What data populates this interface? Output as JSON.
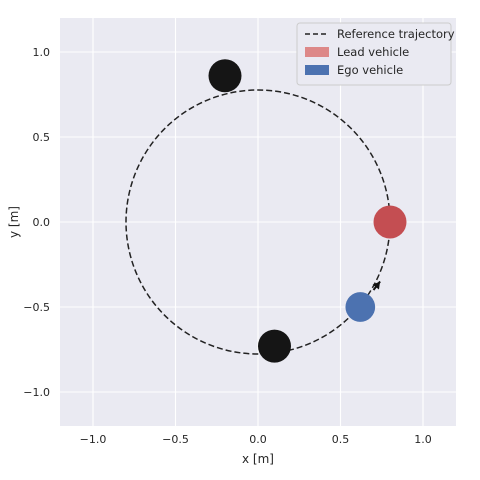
{
  "chart_data": {
    "type": "scatter",
    "title": "",
    "xlabel": "x [m]",
    "ylabel": "y [m]",
    "xlim": [
      -1.2,
      1.2
    ],
    "ylim": [
      -1.2,
      1.2
    ],
    "xticks": [
      -1.0,
      -0.5,
      0.0,
      0.5,
      1.0
    ],
    "xtick_labels": [
      "−1.0",
      "−0.5",
      "0.0",
      "0.5",
      "1.0"
    ],
    "yticks": [
      -1.0,
      -0.5,
      0.0,
      0.5,
      1.0
    ],
    "ytick_labels": [
      "−1.0",
      "−0.5",
      "0.0",
      "0.5",
      "1.0"
    ],
    "grid": true,
    "legend_position": "top-right",
    "legend": [
      {
        "label": "Reference trajectory",
        "kind": "dashed-line",
        "color": "#222222"
      },
      {
        "label": "Lead vehicle",
        "kind": "patch",
        "color": "#dd8888"
      },
      {
        "label": "Ego vehicle",
        "kind": "patch",
        "color": "#4c72b0"
      }
    ],
    "reference_trajectory": {
      "center": [
        0.0,
        0.0
      ],
      "radius": 0.8
    },
    "obstacles": [
      {
        "x": -0.2,
        "y": 0.86,
        "r": 0.1,
        "color": "#151515"
      },
      {
        "x": 0.1,
        "y": -0.73,
        "r": 0.1,
        "color": "#151515"
      }
    ],
    "lead_vehicle": {
      "x": 0.8,
      "y": 0.0,
      "r": 0.1,
      "color": "#c44e52"
    },
    "ego_vehicle": {
      "x": 0.62,
      "y": -0.5,
      "r": 0.09,
      "color": "#4c72b0"
    },
    "ego_heading_arrow": {
      "from": [
        0.7,
        -0.4
      ],
      "to": [
        0.74,
        -0.35
      ],
      "color": "#111111"
    },
    "colors": {
      "axes_bg": "#eaeaf2",
      "grid": "#ffffff",
      "text": "#262626"
    }
  }
}
